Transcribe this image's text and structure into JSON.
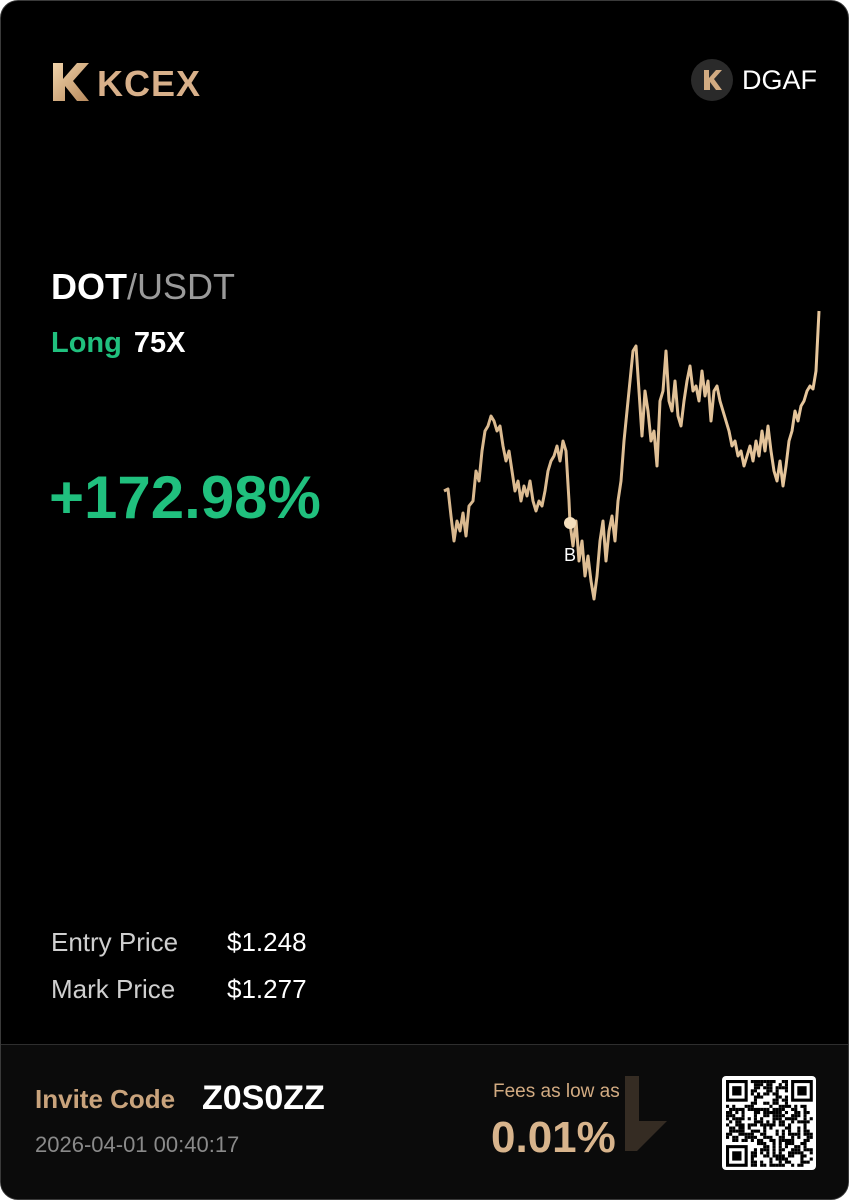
{
  "header": {
    "brand": "KCEX",
    "user": "DGAF"
  },
  "position": {
    "base": "DOT",
    "quote": "/USDT",
    "side": "Long",
    "leverage": "75X",
    "pnl": "+172.98%"
  },
  "chart": {
    "marker_label": "B"
  },
  "prices": [
    {
      "label": "Entry Price",
      "value": "$1.248"
    },
    {
      "label": "Mark Price",
      "value": "$1.277"
    }
  ],
  "footer": {
    "invite_label": "Invite Code",
    "invite_code": "Z0S0ZZ",
    "timestamp": "2026-04-01 00:40:17",
    "fees_label": "Fees as low as",
    "fees_value": "0.01%"
  }
}
